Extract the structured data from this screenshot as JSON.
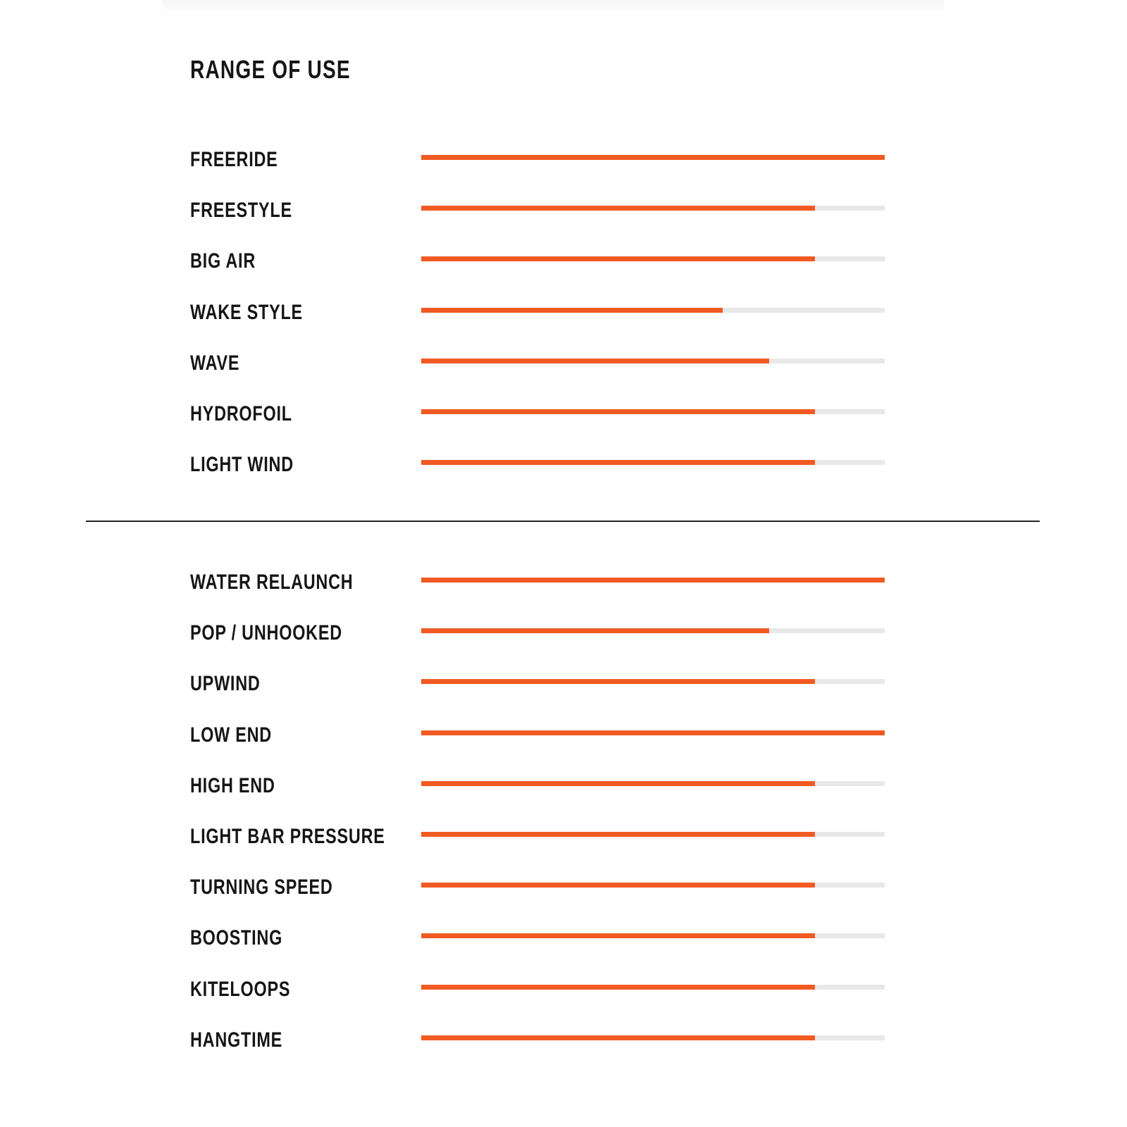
{
  "title": "RANGE OF USE",
  "colors": {
    "fill": "#f15a22",
    "track": "#e8e8e8"
  },
  "chart_data": {
    "type": "bar",
    "orientation": "horizontal",
    "title": "RANGE OF USE",
    "xlim": [
      0,
      100
    ],
    "grid": false,
    "groups": [
      {
        "categories": [
          "FREERIDE",
          "FREESTYLE",
          "BIG AIR",
          "WAKE STYLE",
          "WAVE",
          "HYDROFOIL",
          "LIGHT WIND"
        ],
        "values": [
          100,
          85,
          85,
          65,
          75,
          85,
          85
        ]
      },
      {
        "categories": [
          "WATER RELAUNCH",
          "POP / UNHOOKED",
          "UPWIND",
          "LOW END",
          "HIGH END",
          "LIGHT BAR PRESSURE",
          "TURNING SPEED",
          "BOOSTING",
          "KITELOOPS",
          "HANGTIME"
        ],
        "values": [
          100,
          75,
          85,
          100,
          85,
          85,
          85,
          85,
          85,
          85
        ]
      }
    ]
  }
}
